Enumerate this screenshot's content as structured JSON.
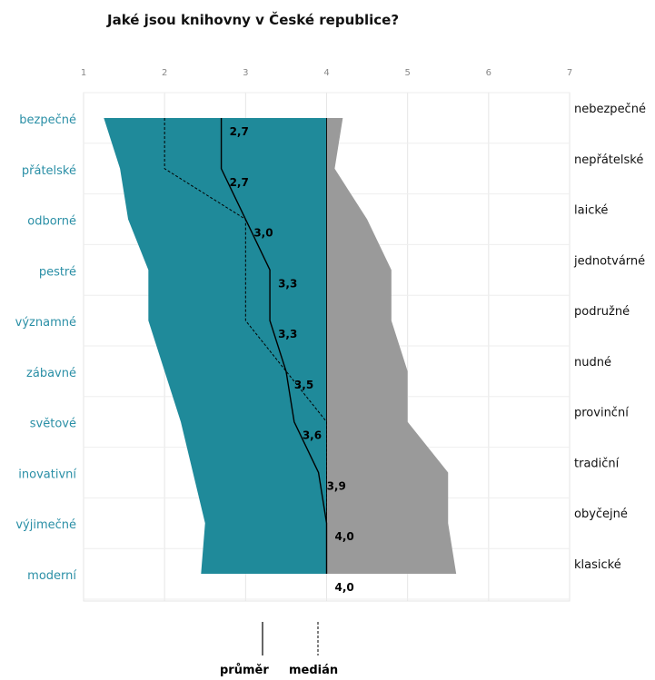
{
  "chart_data": {
    "type": "area",
    "title": "Jaké jsou knihovny v České republice?",
    "x_ticks": [
      1,
      2,
      3,
      4,
      5,
      6,
      7
    ],
    "xlim": [
      1,
      7
    ],
    "left_labels": [
      "bezpečné",
      "přátelské",
      "odborné",
      "pestré",
      "významné",
      "zábavné",
      "světové",
      "inovativní",
      "výjimečné",
      "moderní"
    ],
    "right_labels": [
      "nebezpečné",
      "nepřátelské",
      "laické",
      "jednotvárné",
      "podružné",
      "nudné",
      "provinční",
      "tradiční",
      "obyčejné",
      "klasické"
    ],
    "left_extent": [
      1.25,
      1.45,
      1.55,
      1.8,
      1.8,
      2.0,
      2.2,
      2.35,
      2.5,
      2.45
    ],
    "right_extent": [
      4.2,
      4.1,
      4.5,
      4.8,
      4.8,
      5.0,
      5.0,
      5.5,
      5.5,
      5.6
    ],
    "series": [
      {
        "name": "průměr",
        "values": [
          2.7,
          2.7,
          3.0,
          3.3,
          3.3,
          3.5,
          3.6,
          3.9,
          4.0,
          4.0
        ],
        "labels": [
          "2,7",
          "2,7",
          "3,0",
          "3,3",
          "3,3",
          "3,5",
          "3,6",
          "3,9",
          "4,0",
          "4,0"
        ]
      },
      {
        "name": "medián",
        "values": [
          2,
          2,
          3,
          3,
          3,
          3.5,
          4,
          4,
          4,
          4
        ]
      }
    ],
    "grid": true,
    "colors": {
      "left_fill": "#1f8a9a",
      "right_fill": "#9a9a9a",
      "left_label": "#2a8fa6",
      "mean_line": "#000000",
      "median_line": "#000000"
    }
  },
  "legend": {
    "mean": "průměr",
    "median": "medián"
  }
}
